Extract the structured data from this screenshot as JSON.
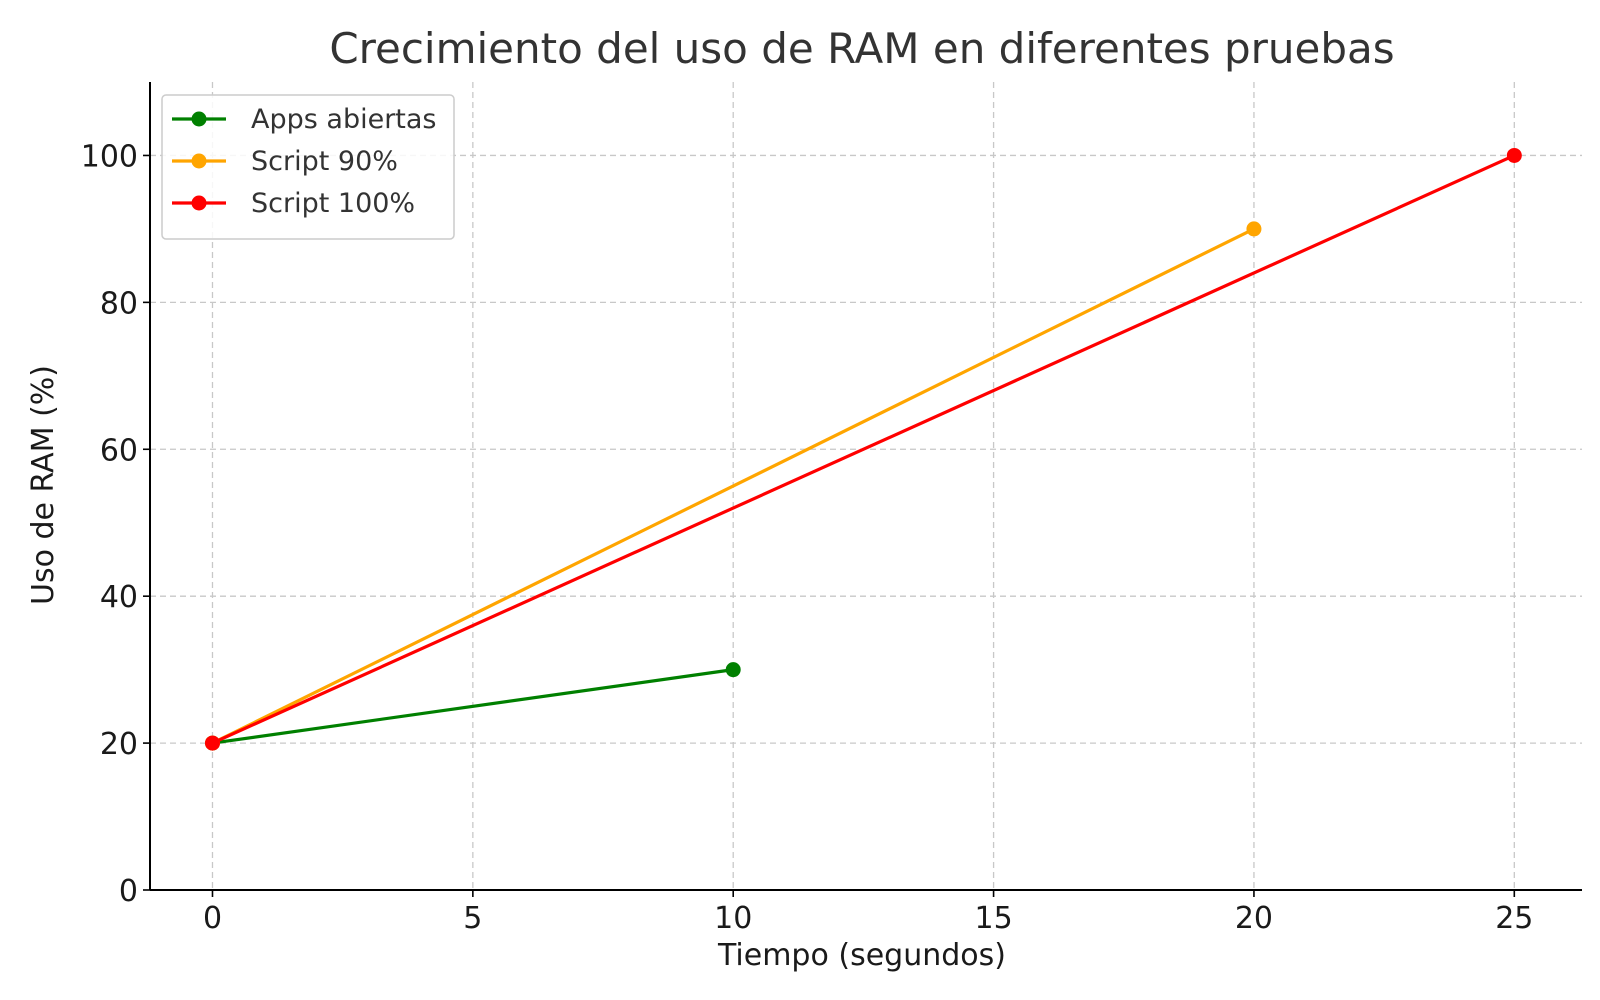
{
  "chart_data": {
    "type": "line",
    "title": "Crecimiento del uso de RAM en diferentes pruebas",
    "xlabel": "Tiempo (segundos)",
    "ylabel": "Uso de RAM (%)",
    "xlim": [
      -1.2,
      26.3
    ],
    "ylim": [
      0,
      110
    ],
    "xticks": [
      0,
      5,
      10,
      15,
      20,
      25
    ],
    "yticks": [
      0,
      20,
      40,
      60,
      80,
      100
    ],
    "grid": true,
    "legend_position": "top-left",
    "series": [
      {
        "name": "Apps abiertas",
        "color": "#008000",
        "x": [
          0,
          10
        ],
        "y": [
          20,
          30
        ]
      },
      {
        "name": "Script 90%",
        "color": "#FFA500",
        "x": [
          0,
          20
        ],
        "y": [
          20,
          90
        ]
      },
      {
        "name": "Script 100%",
        "color": "#FF0000",
        "x": [
          0,
          25
        ],
        "y": [
          20,
          100
        ]
      }
    ]
  }
}
